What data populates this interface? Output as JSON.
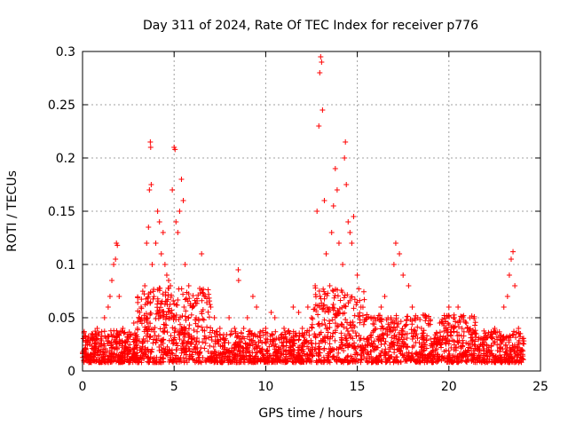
{
  "chart_data": {
    "type": "scatter",
    "title": "Day 311 of 2024, Rate Of TEC Index for receiver p776",
    "xlabel": "GPS time / hours",
    "ylabel": "ROTI / TECUs",
    "xlim": [
      0,
      25
    ],
    "ylim": [
      0,
      0.3
    ],
    "xticks": [
      0,
      5,
      10,
      15,
      20,
      25
    ],
    "yticks": [
      0,
      0.05,
      0.1,
      0.15,
      0.2,
      0.25,
      0.3
    ],
    "grid": true,
    "marker": "+",
    "color": "#ff0000",
    "series": [
      {
        "points": [
          [
            0.1,
            0.02
          ],
          [
            0.2,
            0.015
          ],
          [
            0.3,
            0.03
          ],
          [
            0.4,
            0.025
          ],
          [
            0.5,
            0.035
          ],
          [
            0.6,
            0.02
          ],
          [
            0.8,
            0.04
          ],
          [
            1.0,
            0.03
          ],
          [
            1.2,
            0.05
          ],
          [
            1.4,
            0.06
          ],
          [
            1.5,
            0.07
          ],
          [
            1.6,
            0.085
          ],
          [
            1.7,
            0.1
          ],
          [
            1.8,
            0.105
          ],
          [
            1.85,
            0.12
          ],
          [
            1.9,
            0.118
          ],
          [
            2.0,
            0.07
          ],
          [
            2.2,
            0.04
          ],
          [
            2.5,
            0.03
          ],
          [
            2.8,
            0.045
          ],
          [
            3.0,
            0.04
          ],
          [
            3.2,
            0.06
          ],
          [
            3.4,
            0.08
          ],
          [
            3.5,
            0.12
          ],
          [
            3.6,
            0.135
          ],
          [
            3.65,
            0.17
          ],
          [
            3.7,
            0.215
          ],
          [
            3.72,
            0.21
          ],
          [
            3.75,
            0.175
          ],
          [
            3.8,
            0.1
          ],
          [
            4.0,
            0.12
          ],
          [
            4.1,
            0.15
          ],
          [
            4.2,
            0.14
          ],
          [
            4.3,
            0.11
          ],
          [
            4.4,
            0.13
          ],
          [
            4.5,
            0.1
          ],
          [
            4.6,
            0.09
          ],
          [
            4.7,
            0.085
          ],
          [
            4.8,
            0.08
          ],
          [
            4.9,
            0.17
          ],
          [
            5.0,
            0.21
          ],
          [
            5.05,
            0.208
          ],
          [
            5.1,
            0.14
          ],
          [
            5.2,
            0.13
          ],
          [
            5.3,
            0.15
          ],
          [
            5.4,
            0.18
          ],
          [
            5.5,
            0.16
          ],
          [
            5.6,
            0.1
          ],
          [
            5.8,
            0.08
          ],
          [
            6.0,
            0.06
          ],
          [
            6.2,
            0.05
          ],
          [
            6.5,
            0.11
          ],
          [
            6.7,
            0.07
          ],
          [
            7.0,
            0.06
          ],
          [
            7.2,
            0.05
          ],
          [
            7.5,
            0.04
          ],
          [
            8.0,
            0.05
          ],
          [
            8.3,
            0.04
          ],
          [
            8.5,
            0.095
          ],
          [
            8.52,
            0.085
          ],
          [
            8.8,
            0.04
          ],
          [
            9.0,
            0.05
          ],
          [
            9.3,
            0.07
          ],
          [
            9.5,
            0.06
          ],
          [
            10.0,
            0.04
          ],
          [
            10.3,
            0.055
          ],
          [
            10.5,
            0.05
          ],
          [
            11.0,
            0.04
          ],
          [
            11.5,
            0.06
          ],
          [
            11.8,
            0.055
          ],
          [
            12.0,
            0.04
          ],
          [
            12.3,
            0.06
          ],
          [
            12.5,
            0.05
          ],
          [
            12.7,
            0.08
          ],
          [
            12.8,
            0.15
          ],
          [
            12.9,
            0.23
          ],
          [
            12.95,
            0.28
          ],
          [
            13.0,
            0.295
          ],
          [
            13.05,
            0.29
          ],
          [
            13.1,
            0.245
          ],
          [
            13.2,
            0.16
          ],
          [
            13.3,
            0.11
          ],
          [
            13.5,
            0.08
          ],
          [
            13.6,
            0.13
          ],
          [
            13.7,
            0.155
          ],
          [
            13.8,
            0.19
          ],
          [
            13.9,
            0.17
          ],
          [
            14.0,
            0.12
          ],
          [
            14.2,
            0.1
          ],
          [
            14.3,
            0.2
          ],
          [
            14.35,
            0.215
          ],
          [
            14.4,
            0.175
          ],
          [
            14.5,
            0.14
          ],
          [
            14.6,
            0.13
          ],
          [
            14.7,
            0.12
          ],
          [
            14.8,
            0.145
          ],
          [
            15.0,
            0.09
          ],
          [
            15.2,
            0.06
          ],
          [
            15.5,
            0.05
          ],
          [
            16.0,
            0.04
          ],
          [
            16.3,
            0.06
          ],
          [
            16.5,
            0.07
          ],
          [
            17.0,
            0.1
          ],
          [
            17.1,
            0.12
          ],
          [
            17.3,
            0.11
          ],
          [
            17.5,
            0.09
          ],
          [
            17.8,
            0.08
          ],
          [
            18.0,
            0.06
          ],
          [
            18.3,
            0.05
          ],
          [
            18.5,
            0.04
          ],
          [
            19.0,
            0.03
          ],
          [
            19.5,
            0.045
          ],
          [
            20.0,
            0.06
          ],
          [
            20.3,
            0.05
          ],
          [
            20.5,
            0.06
          ],
          [
            21.0,
            0.04
          ],
          [
            21.5,
            0.035
          ],
          [
            22.0,
            0.03
          ],
          [
            22.5,
            0.04
          ],
          [
            23.0,
            0.06
          ],
          [
            23.2,
            0.07
          ],
          [
            23.3,
            0.09
          ],
          [
            23.4,
            0.105
          ],
          [
            23.5,
            0.112
          ],
          [
            23.6,
            0.08
          ],
          [
            23.8,
            0.04
          ],
          [
            24.0,
            0.02
          ]
        ]
      }
    ]
  }
}
